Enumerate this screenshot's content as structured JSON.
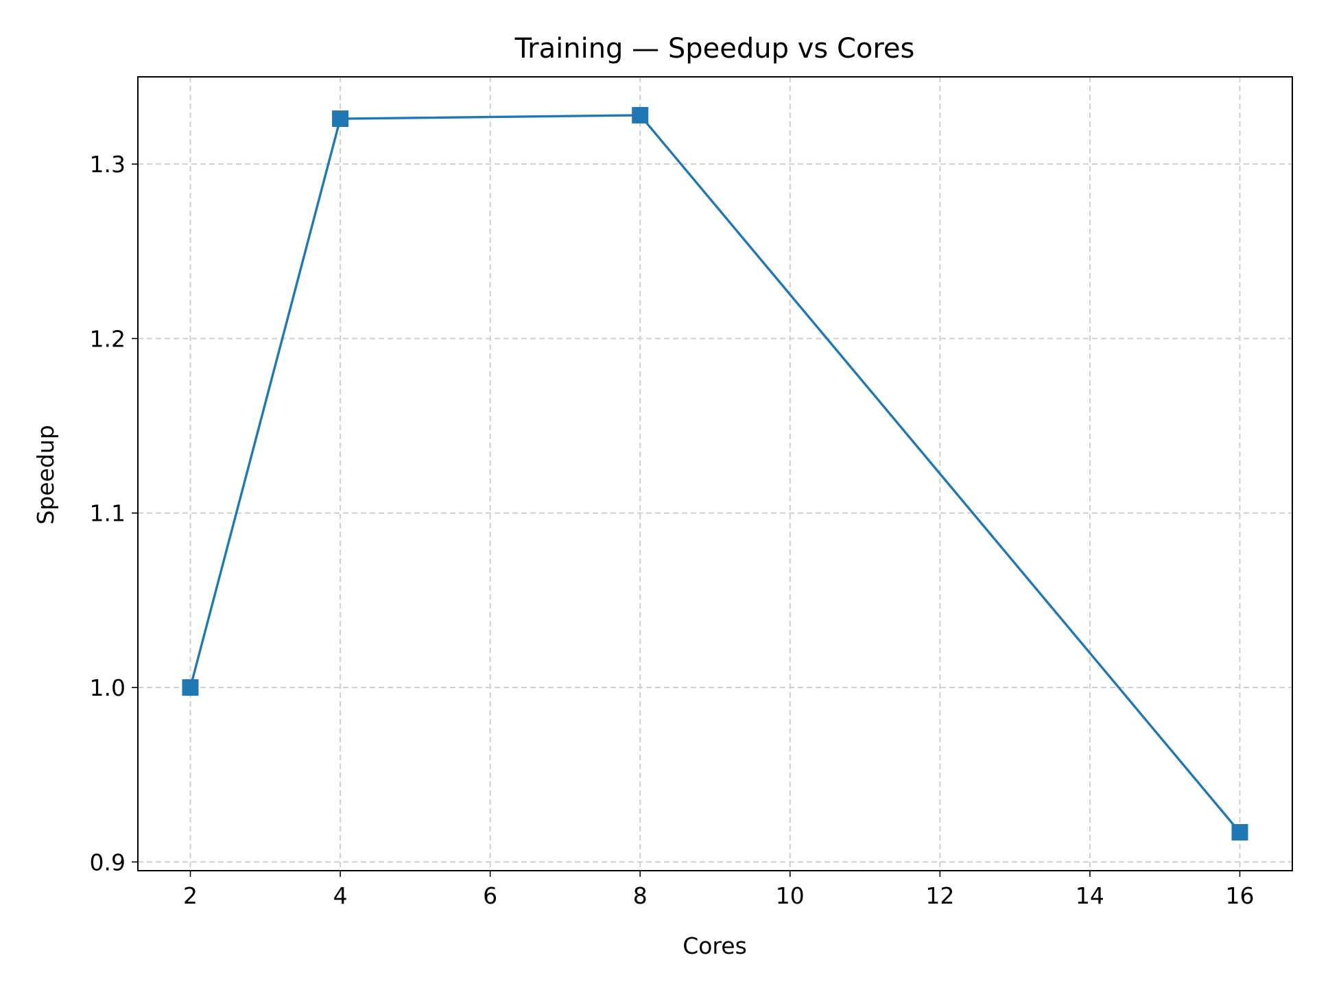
{
  "chart_data": {
    "type": "line",
    "title": "Training — Speedup vs Cores",
    "xlabel": "Cores",
    "ylabel": "Speedup",
    "xlim": [
      1.3,
      16.7
    ],
    "ylim": [
      0.895,
      1.35
    ],
    "xticks": [
      2,
      4,
      6,
      8,
      10,
      12,
      14,
      16
    ],
    "yticks": [
      0.9,
      1.0,
      1.1,
      1.2,
      1.3
    ],
    "ytick_labels": [
      "0.9",
      "1.0",
      "1.1",
      "1.2",
      "1.3"
    ],
    "grid": true,
    "marker": "square",
    "color": "#1f77b4",
    "series": [
      {
        "x": [
          2,
          4,
          8,
          16
        ],
        "y": [
          1.0,
          1.326,
          1.328,
          0.917
        ]
      }
    ]
  }
}
